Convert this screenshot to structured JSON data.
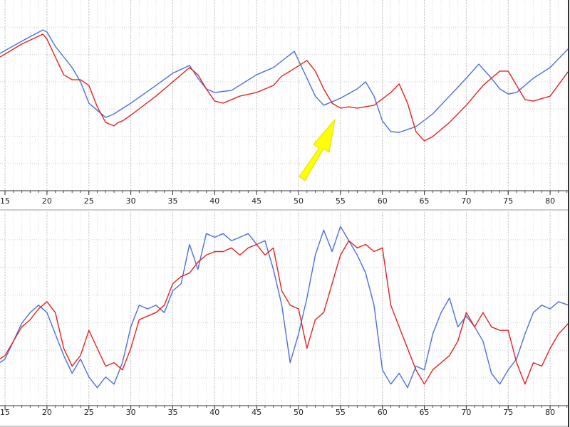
{
  "chart_data": [
    {
      "type": "line",
      "xlim": [
        14.4,
        82.2
      ],
      "xticks": [
        15,
        20,
        25,
        30,
        35,
        40,
        45,
        50,
        55,
        60,
        65,
        70,
        75,
        80
      ],
      "ylim": [
        0,
        100
      ],
      "grid": true,
      "series": [
        {
          "color": "#4a6fe0",
          "x": [
            14.4,
            17,
            19.5,
            20,
            21,
            23,
            24,
            25,
            27,
            28,
            30,
            33,
            35,
            37,
            38,
            39,
            40,
            42,
            45,
            47,
            49.5,
            50,
            51,
            52,
            53,
            55,
            57,
            58,
            59,
            60,
            61,
            62,
            64,
            66,
            68,
            70,
            71.5,
            73,
            74,
            75,
            76,
            78,
            80,
            82.2
          ],
          "values": [
            72.0,
            78.4,
            84.3,
            83.2,
            75.7,
            64.6,
            57.1,
            45.9,
            38.4,
            40.3,
            45.9,
            55.2,
            61.6,
            65.7,
            59.0,
            53.4,
            51.5,
            52.6,
            60.8,
            64.6,
            73.1,
            68.3,
            59.0,
            49.6,
            44.8,
            48.5,
            53.4,
            57.1,
            49.6,
            36.6,
            31.0,
            30.6,
            33.6,
            40.3,
            49.6,
            59.0,
            66.4,
            59.0,
            53.4,
            50.7,
            51.5,
            59.0,
            64.6,
            74.6
          ]
        },
        {
          "color": "#e8201c",
          "x": [
            14.4,
            17,
            19.5,
            20,
            21,
            22,
            23,
            24,
            25,
            26,
            27,
            28,
            28.5,
            29,
            30,
            33,
            35,
            36,
            37,
            38,
            39,
            40,
            41,
            43,
            45,
            47,
            48,
            49,
            51,
            52,
            53,
            54,
            55,
            56,
            57,
            59,
            61,
            62,
            63,
            64,
            65,
            66,
            68,
            70,
            72,
            73,
            74,
            75,
            76,
            77,
            78,
            80,
            82.2
          ],
          "values": [
            70.1,
            76.9,
            82.1,
            79.5,
            70.1,
            60.8,
            58.2,
            58.2,
            55.2,
            44.0,
            35.8,
            34.0,
            35.8,
            36.6,
            39.6,
            49.6,
            57.1,
            60.8,
            64.6,
            60.8,
            53.4,
            47.0,
            45.9,
            49.6,
            51.5,
            55.2,
            60.1,
            62.7,
            68.3,
            62.7,
            53.4,
            45.9,
            43.3,
            44.0,
            43.3,
            44.8,
            51.5,
            56.0,
            45.9,
            31.0,
            26.1,
            28.4,
            35.8,
            44.8,
            55.2,
            59.0,
            62.7,
            62.7,
            55.2,
            47.8,
            47.0,
            49.6,
            62.7
          ]
        }
      ]
    },
    {
      "type": "line",
      "xlim": [
        14.4,
        82.2
      ],
      "xticks": [
        15,
        20,
        25,
        30,
        35,
        40,
        45,
        50,
        55,
        60,
        65,
        70,
        75,
        80
      ],
      "ylim": [
        0,
        100
      ],
      "grid": true,
      "x": [
        14.4,
        15,
        16,
        17,
        18,
        19,
        20,
        21,
        22,
        23,
        24,
        25,
        26,
        27,
        28,
        29,
        30,
        31,
        32,
        33,
        34,
        35,
        36,
        37,
        38,
        39,
        40,
        41,
        42,
        43,
        44,
        45,
        46,
        47,
        48,
        49,
        50,
        51,
        52,
        53,
        54,
        55,
        56,
        57,
        58,
        59,
        60,
        61,
        62,
        63,
        64,
        65,
        66,
        67,
        68,
        69,
        70,
        71,
        72,
        73,
        74,
        75,
        76,
        77,
        78,
        79,
        80,
        81,
        82.2
      ],
      "series": [
        {
          "color": "#4a6fe0",
          "values": [
            22.2,
            24.1,
            33.3,
            42.6,
            48.1,
            51.9,
            48.1,
            37.0,
            25.9,
            16.7,
            24.1,
            14.8,
            9.3,
            14.8,
            11.1,
            22.2,
            40.7,
            51.9,
            50.0,
            51.9,
            48.1,
            59.3,
            63.0,
            83.3,
            70.4,
            88.9,
            87.0,
            88.9,
            85.2,
            87.0,
            88.9,
            83.3,
            85.2,
            70.4,
            51.9,
            22.2,
            37.0,
            55.6,
            77.8,
            90.7,
            79.6,
            92.6,
            85.2,
            77.8,
            68.5,
            51.9,
            18.5,
            11.1,
            16.7,
            9.3,
            20.4,
            18.5,
            37.0,
            48.1,
            55.6,
            40.7,
            46.3,
            40.7,
            33.3,
            16.7,
            11.1,
            18.5,
            24.1,
            37.0,
            48.1,
            51.9,
            50.0,
            53.7,
            51.9
          ]
        },
        {
          "color": "#e8201c",
          "values": [
            24.1,
            25.9,
            33.3,
            40.7,
            44.4,
            50.0,
            53.7,
            48.1,
            29.6,
            20.4,
            25.9,
            38.9,
            29.6,
            20.4,
            22.2,
            18.5,
            29.6,
            44.4,
            46.3,
            48.1,
            51.9,
            63.0,
            66.7,
            68.5,
            74.1,
            77.8,
            79.6,
            79.6,
            81.5,
            77.8,
            81.5,
            83.3,
            77.8,
            81.5,
            59.3,
            51.9,
            50.0,
            29.6,
            44.4,
            48.1,
            63.0,
            77.8,
            85.2,
            81.5,
            83.3,
            79.6,
            81.5,
            51.9,
            40.7,
            29.6,
            18.5,
            11.1,
            18.5,
            22.2,
            25.9,
            33.3,
            48.1,
            40.7,
            48.1,
            40.7,
            38.9,
            38.9,
            22.2,
            11.1,
            22.2,
            20.4,
            29.6,
            37.0,
            42.6
          ]
        }
      ]
    }
  ]
}
